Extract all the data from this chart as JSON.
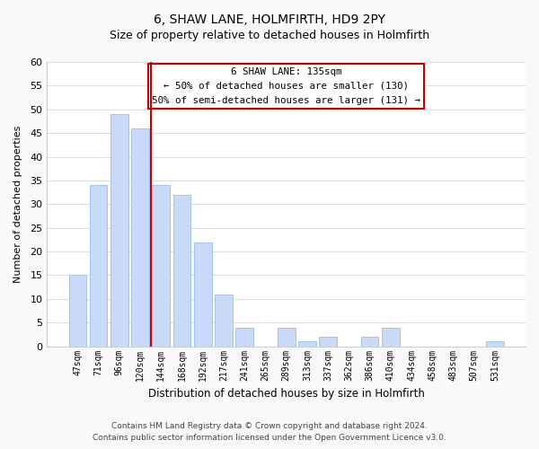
{
  "title": "6, SHAW LANE, HOLMFIRTH, HD9 2PY",
  "subtitle": "Size of property relative to detached houses in Holmfirth",
  "xlabel": "Distribution of detached houses by size in Holmfirth",
  "ylabel": "Number of detached properties",
  "bar_labels": [
    "47sqm",
    "71sqm",
    "96sqm",
    "120sqm",
    "144sqm",
    "168sqm",
    "192sqm",
    "217sqm",
    "241sqm",
    "265sqm",
    "289sqm",
    "313sqm",
    "337sqm",
    "362sqm",
    "386sqm",
    "410sqm",
    "434sqm",
    "458sqm",
    "483sqm",
    "507sqm",
    "531sqm"
  ],
  "bar_values": [
    15,
    34,
    49,
    46,
    34,
    32,
    22,
    11,
    4,
    0,
    4,
    1,
    2,
    0,
    2,
    4,
    0,
    0,
    0,
    0,
    1
  ],
  "bar_color": "#c9daf8",
  "bar_edge_color": "#a4c2f4",
  "vline_x_index": 4,
  "vline_color": "#cc0000",
  "ylim": [
    0,
    60
  ],
  "yticks": [
    0,
    5,
    10,
    15,
    20,
    25,
    30,
    35,
    40,
    45,
    50,
    55,
    60
  ],
  "annotation_title": "6 SHAW LANE: 135sqm",
  "annotation_line1": "← 50% of detached houses are smaller (130)",
  "annotation_line2": "50% of semi-detached houses are larger (131) →",
  "footer1": "Contains HM Land Registry data © Crown copyright and database right 2024.",
  "footer2": "Contains public sector information licensed under the Open Government Licence v3.0.",
  "background_color": "#f9f9f9",
  "plot_background": "#ffffff",
  "grid_color": "#d8d8d8"
}
